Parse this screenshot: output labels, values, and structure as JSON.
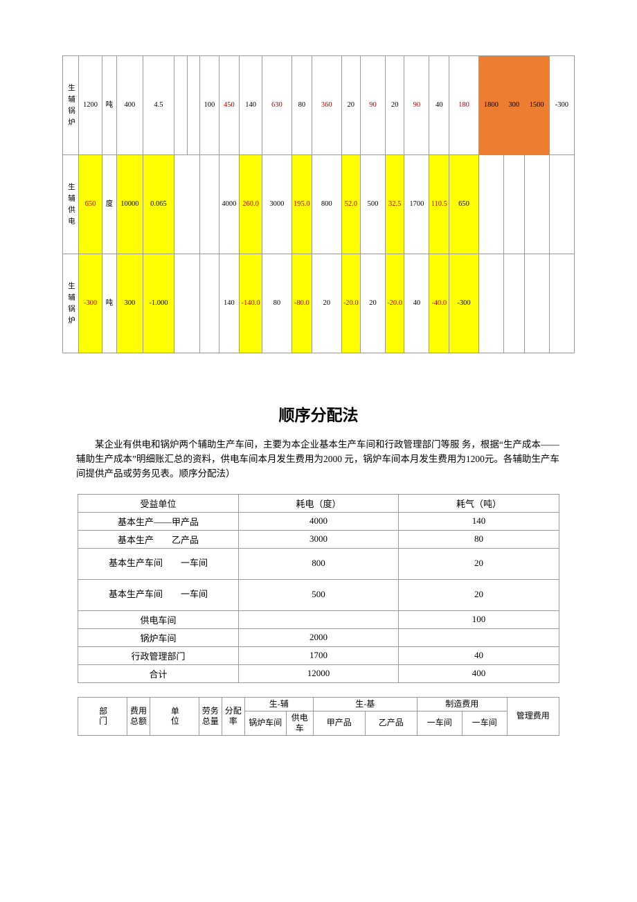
{
  "colors": {
    "orange": "#ed7d31",
    "yellow": "#ffff00",
    "red": "#c00000"
  },
  "table1": {
    "rows": [
      {
        "label": "生辅锅炉",
        "cells": [
          "1200",
          "吨",
          "400",
          "4.5",
          "",
          "",
          "100",
          "450",
          "140",
          "630",
          "80",
          "360",
          "20",
          "90",
          "20",
          "90",
          "40",
          "180",
          "1800",
          "300",
          "1500",
          "-300"
        ],
        "bg": [
          "",
          "",
          "",
          "",
          "",
          "",
          "",
          "",
          "",
          "",
          "",
          "",
          "",
          "",
          "",
          "",
          "",
          "",
          "orange",
          "orange",
          "orange",
          ""
        ],
        "fg": [
          "",
          "",
          "",
          "",
          "",
          "",
          "",
          "red",
          "",
          "red",
          "",
          "red",
          "",
          "red",
          "",
          "red",
          "",
          "red",
          "",
          "",
          "",
          ""
        ]
      },
      {
        "label": "生辅供电",
        "cells": [
          "650",
          "度",
          "10000",
          "0.065",
          "",
          "",
          "",
          "4000",
          "260.0",
          "3000",
          "195.0",
          "800",
          "52.0",
          "500",
          "32.5",
          "1700",
          "110.5",
          "650",
          "",
          "",
          ""
        ],
        "bg": [
          "yellow",
          "",
          "yellow",
          "yellow",
          "",
          "",
          "",
          "",
          "yellow",
          "",
          "yellow",
          "",
          "yellow",
          "",
          "yellow",
          "",
          "yellow",
          "yellow",
          "",
          "",
          ""
        ],
        "fg": [
          "red",
          "",
          "",
          "",
          "",
          "",
          "",
          "",
          "red",
          "",
          "red",
          "",
          "red",
          "",
          "red",
          "",
          "red",
          "",
          "",
          "",
          ""
        ],
        "span4_5": true
      },
      {
        "label": "生辅锅炉",
        "cells": [
          "-300",
          "吨",
          "300",
          "-1.000",
          "",
          "",
          "",
          "140",
          "-140.0",
          "80",
          "-80.0",
          "20",
          "-20.0",
          "20",
          "-20.0",
          "40",
          "-40.0",
          "-300",
          "",
          "",
          ""
        ],
        "bg": [
          "yellow",
          "",
          "yellow",
          "yellow",
          "",
          "",
          "",
          "",
          "yellow",
          "",
          "yellow",
          "",
          "yellow",
          "",
          "yellow",
          "",
          "yellow",
          "yellow",
          "",
          "",
          ""
        ],
        "fg": [
          "red",
          "",
          "",
          "",
          "",
          "",
          "",
          "",
          "red",
          "",
          "red",
          "",
          "red",
          "",
          "red",
          "",
          "red",
          "",
          "",
          "",
          ""
        ],
        "span4_5": true
      }
    ]
  },
  "title": "顺序分配法",
  "paragraph": "某企业有供电和锅炉两个辅助生产车间，主要为本企业基本生产车间和行政管理部门等服  务，根据“生产成本——辅助生产成本”明细账汇总的资料，供电车间本月发生费用为2000 元，锅炉车间本月发生费用为1200元。各辅助生产车间提供产品或劳务见表。顺序分配法）",
  "table2": {
    "headers": [
      "受益单位",
      "耗电（度）",
      "耗气（吨）"
    ],
    "rows": [
      [
        "基本生产——甲产品",
        "4000",
        "140"
      ],
      [
        "基本生产　　乙产品",
        "3000",
        "80"
      ],
      [
        "基本生产车间　　一车间",
        "800",
        "20"
      ],
      [
        "基本生产车间　　一车间",
        "500",
        "20"
      ],
      [
        "供电车间",
        "",
        "100"
      ],
      [
        "锅炉车间",
        "2000",
        ""
      ],
      [
        "行政管理部门",
        "1700",
        "40"
      ],
      [
        "合计",
        "12000",
        "400"
      ]
    ],
    "twoline": [
      false,
      false,
      true,
      true,
      false,
      false,
      false,
      false
    ]
  },
  "table3": {
    "row1": [
      "部门",
      "费用总额",
      "单位",
      "劳务总量",
      "分配率",
      "生-辅",
      "生-基",
      "制造费用",
      "管理费用"
    ],
    "row2": [
      "锅炉车间",
      "供电车",
      "甲产品",
      "乙产品",
      "一车间",
      "一车间"
    ]
  }
}
